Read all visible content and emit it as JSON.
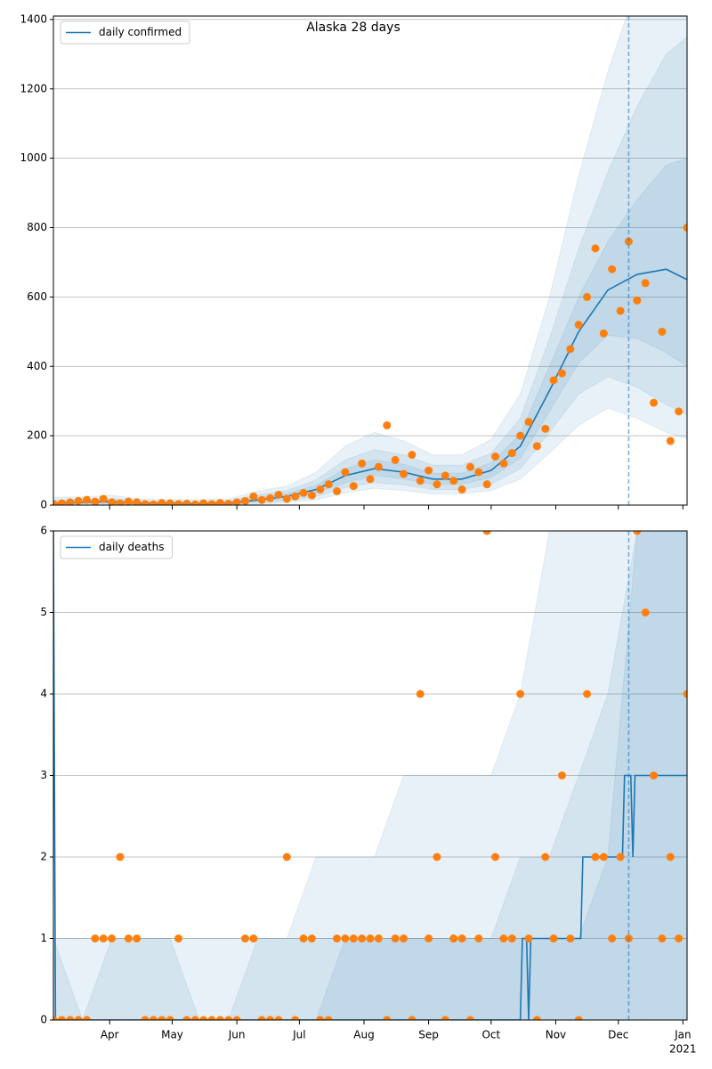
{
  "chart_data": [
    {
      "type": "line",
      "title": "Alaska 28 days",
      "xlim": [
        0,
        304
      ],
      "ylim": [
        0,
        1410
      ],
      "xticks": [
        27,
        57,
        88,
        118,
        149,
        180,
        210,
        241,
        271,
        302
      ],
      "yticks": [
        0,
        200,
        400,
        600,
        800,
        1000,
        1200,
        1400
      ],
      "grid": true,
      "legend": "upper left",
      "forecast_start_x": 276,
      "x": [
        0,
        14,
        28,
        42,
        56,
        70,
        84,
        98,
        112,
        126,
        140,
        154,
        168,
        182,
        196,
        210,
        224,
        238,
        252,
        266,
        280,
        294,
        304
      ],
      "series": [
        {
          "name": "daily confirmed",
          "color": "#1f77b4",
          "values": [
            5,
            8,
            10,
            5,
            4,
            4,
            5,
            15,
            25,
            45,
            85,
            105,
            95,
            75,
            75,
            100,
            170,
            330,
            500,
            620,
            665,
            680,
            650
          ]
        }
      ],
      "band_x": [
        0,
        14,
        28,
        42,
        56,
        70,
        84,
        98,
        112,
        126,
        140,
        154,
        168,
        182,
        196,
        210,
        224,
        238,
        252,
        266,
        280,
        294,
        304
      ],
      "bands": [
        {
          "color": "#1f77b4",
          "opacity": 0.1,
          "lower": [
            0,
            0,
            1,
            0,
            0,
            0,
            0,
            2,
            7,
            15,
            35,
            48,
            42,
            32,
            32,
            42,
            75,
            150,
            230,
            280,
            250,
            210,
            190
          ],
          "upper": [
            22,
            24,
            28,
            18,
            16,
            16,
            18,
            40,
            55,
            95,
            170,
            210,
            185,
            145,
            145,
            190,
            320,
            600,
            950,
            1250,
            1500,
            1650,
            1700
          ]
        },
        {
          "color": "#1f77b4",
          "opacity": 0.1,
          "lower": [
            0,
            3,
            4,
            1,
            1,
            1,
            1,
            6,
            12,
            25,
            50,
            65,
            58,
            45,
            45,
            60,
            105,
            210,
            320,
            370,
            340,
            290,
            260
          ],
          "upper": [
            14,
            16,
            19,
            12,
            10,
            10,
            12,
            30,
            42,
            72,
            130,
            160,
            145,
            115,
            115,
            150,
            250,
            480,
            740,
            960,
            1150,
            1300,
            1350
          ]
        },
        {
          "color": "#1f77b4",
          "opacity": 0.1,
          "lower": [
            2,
            5,
            7,
            3,
            2,
            2,
            3,
            10,
            18,
            35,
            65,
            85,
            75,
            60,
            60,
            80,
            135,
            270,
            410,
            490,
            480,
            440,
            400
          ],
          "upper": [
            9,
            12,
            14,
            8,
            7,
            7,
            8,
            22,
            33,
            57,
            105,
            130,
            118,
            92,
            92,
            122,
            205,
            400,
            600,
            760,
            880,
            980,
            1000
          ]
        }
      ],
      "observed": {
        "color": "#ff7f0e",
        "x": [
          0,
          4,
          8,
          12,
          16,
          20,
          24,
          28,
          32,
          36,
          40,
          44,
          48,
          52,
          56,
          60,
          64,
          68,
          72,
          76,
          80,
          84,
          88,
          92,
          96,
          100,
          104,
          108,
          112,
          116,
          120,
          124,
          128,
          132,
          136,
          140,
          144,
          148,
          152,
          156,
          160,
          164,
          168,
          172,
          176,
          180,
          184,
          188,
          192,
          196,
          200,
          204,
          208,
          212,
          216,
          220,
          224,
          228,
          232,
          236,
          240,
          244,
          248,
          252,
          256,
          260,
          264,
          268,
          272,
          276,
          280,
          284,
          288,
          292,
          296,
          300,
          304
        ],
        "values": [
          3,
          5,
          8,
          12,
          15,
          10,
          18,
          8,
          5,
          10,
          8,
          3,
          2,
          6,
          5,
          3,
          4,
          2,
          5,
          3,
          6,
          4,
          8,
          12,
          25,
          15,
          20,
          30,
          18,
          25,
          35,
          28,
          45,
          60,
          40,
          95,
          55,
          120,
          75,
          110,
          230,
          130,
          90,
          145,
          70,
          100,
          60,
          85,
          70,
          45,
          110,
          95,
          60,
          140,
          120,
          150,
          200,
          240,
          170,
          220,
          360,
          380,
          450,
          520,
          600,
          740,
          495,
          680,
          560,
          760,
          590,
          640,
          295,
          500,
          185,
          270,
          800
        ]
      }
    },
    {
      "type": "line",
      "xlim": [
        0,
        304
      ],
      "ylim": [
        0,
        6
      ],
      "xticks": [
        {
          "value": 27,
          "label": "Apr"
        },
        {
          "value": 57,
          "label": "May"
        },
        {
          "value": 88,
          "label": "Jun"
        },
        {
          "value": 118,
          "label": "Jul"
        },
        {
          "value": 149,
          "label": "Aug"
        },
        {
          "value": 180,
          "label": "Sep"
        },
        {
          "value": 210,
          "label": "Oct"
        },
        {
          "value": 241,
          "label": "Nov"
        },
        {
          "value": 271,
          "label": "Dec"
        },
        {
          "value": 302,
          "label": "Jan"
        }
      ],
      "x_year_label": "2021",
      "yticks": [
        0,
        1,
        2,
        3,
        4,
        5,
        6
      ],
      "grid": true,
      "legend": "upper left",
      "forecast_start_x": 276,
      "x": [
        0,
        1,
        224,
        225,
        227,
        228,
        229,
        253,
        254,
        273,
        274,
        277,
        278,
        279,
        304
      ],
      "series": [
        {
          "name": "daily deaths",
          "color": "#1f77b4",
          "values": [
            6,
            0,
            0,
            1,
            1,
            0,
            1,
            1,
            2,
            2,
            3,
            3,
            2,
            3,
            3
          ]
        }
      ],
      "band_x": [
        0,
        14,
        28,
        42,
        56,
        70,
        84,
        98,
        112,
        126,
        140,
        154,
        168,
        182,
        196,
        210,
        224,
        238,
        252,
        266,
        280,
        294,
        304
      ],
      "bands": [
        {
          "color": "#1f77b4",
          "opacity": 0.1,
          "lower": [
            0,
            0,
            0,
            0,
            0,
            0,
            0,
            0,
            0,
            0,
            0,
            0,
            0,
            0,
            0,
            0,
            0,
            0,
            0,
            0,
            0,
            0,
            0
          ],
          "upper": [
            1,
            1,
            1,
            1,
            1,
            1,
            1,
            1,
            1,
            2,
            2,
            2,
            3,
            3,
            3,
            3,
            4,
            6,
            6,
            6,
            6,
            6,
            6
          ]
        },
        {
          "color": "#1f77b4",
          "opacity": 0.1,
          "lower": [
            0,
            0,
            0,
            0,
            0,
            0,
            0,
            0,
            0,
            0,
            0,
            0,
            0,
            0,
            0,
            0,
            0,
            0,
            0,
            0,
            0,
            0,
            0
          ],
          "upper": [
            1,
            0,
            1,
            1,
            1,
            0,
            0,
            1,
            1,
            1,
            1,
            1,
            1,
            1,
            1,
            1,
            2,
            2,
            3,
            4,
            6,
            6,
            6
          ]
        },
        {
          "color": "#1f77b4",
          "opacity": 0.1,
          "lower": [
            0,
            0,
            0,
            0,
            0,
            0,
            0,
            0,
            0,
            0,
            0,
            0,
            0,
            0,
            0,
            0,
            0,
            0,
            0,
            0,
            0,
            0,
            0
          ],
          "upper": [
            0,
            0,
            0,
            0,
            0,
            0,
            0,
            0,
            0,
            0,
            1,
            1,
            1,
            1,
            1,
            1,
            1,
            1,
            1,
            2,
            6,
            6,
            6
          ]
        }
      ],
      "observed": {
        "color": "#ff7f0e",
        "x": [
          0,
          4,
          8,
          12,
          16,
          20,
          24,
          28,
          32,
          36,
          40,
          44,
          48,
          52,
          56,
          60,
          64,
          68,
          72,
          76,
          80,
          84,
          88,
          92,
          96,
          100,
          104,
          108,
          112,
          116,
          120,
          124,
          128,
          132,
          136,
          140,
          144,
          148,
          152,
          156,
          160,
          164,
          168,
          172,
          176,
          180,
          184,
          188,
          192,
          196,
          200,
          204,
          208,
          212,
          216,
          220,
          224,
          228,
          232,
          236,
          240,
          244,
          248,
          252,
          256,
          260,
          264,
          268,
          272,
          276,
          280,
          284,
          288,
          292,
          296,
          300,
          304
        ],
        "values": [
          0,
          0,
          0,
          0,
          0,
          1,
          1,
          1,
          2,
          1,
          1,
          0,
          0,
          0,
          0,
          1,
          0,
          0,
          0,
          0,
          0,
          0,
          0,
          1,
          1,
          0,
          0,
          0,
          2,
          0,
          1,
          1,
          0,
          0,
          1,
          1,
          1,
          1,
          1,
          1,
          0,
          1,
          1,
          0,
          4,
          1,
          2,
          0,
          1,
          1,
          0,
          1,
          6,
          2,
          1,
          1,
          4,
          1,
          0,
          2,
          1,
          3,
          1,
          0,
          4,
          2,
          2,
          1,
          2,
          1,
          6,
          5,
          3,
          1,
          2,
          1,
          4
        ]
      }
    }
  ]
}
